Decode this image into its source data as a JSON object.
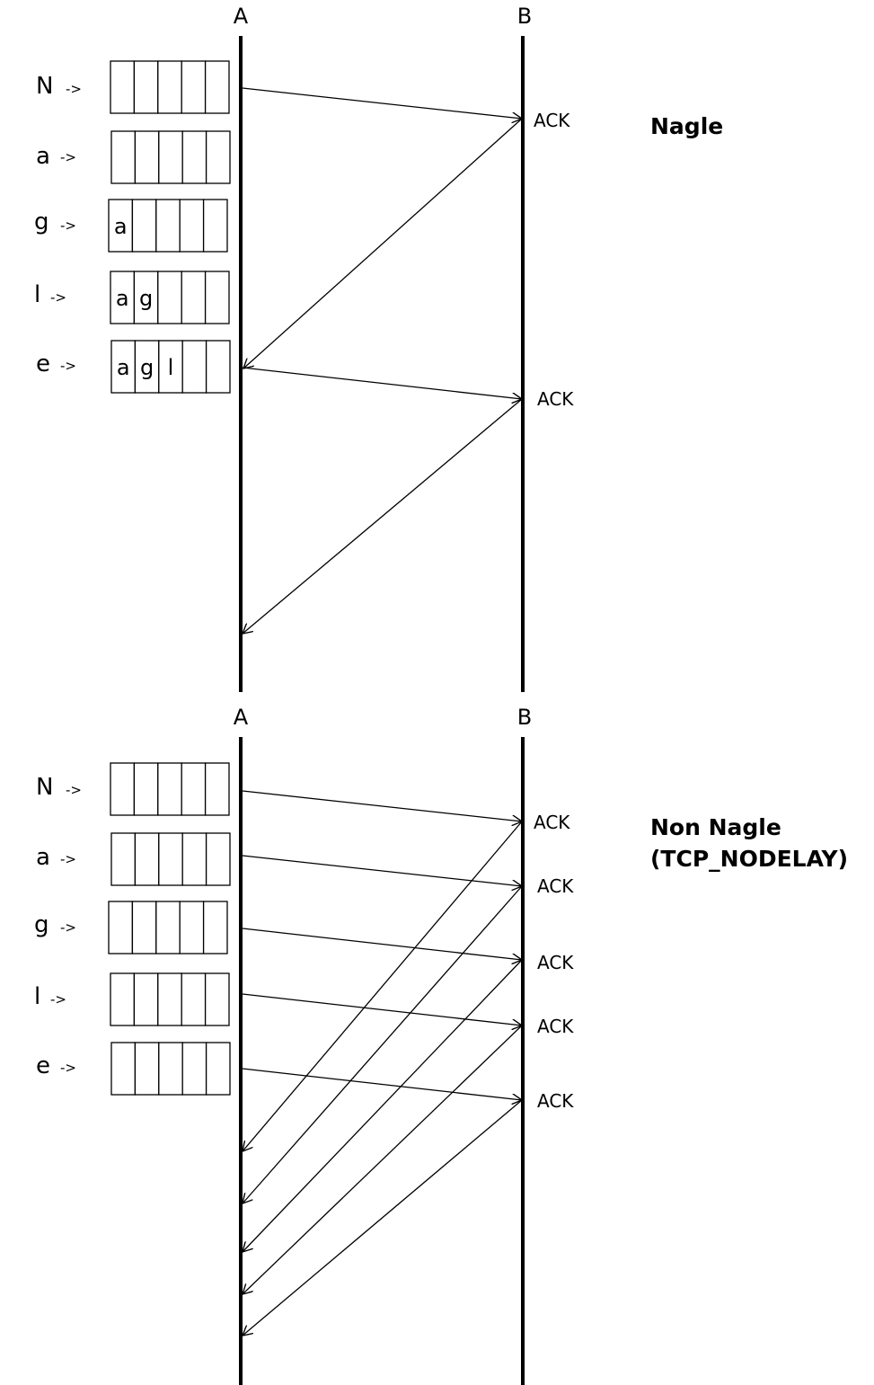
{
  "nagle": {
    "host_a": "A",
    "host_b": "B",
    "title": "Nagle",
    "rows": [
      {
        "char": "N",
        "arrow": "->",
        "buffer": [
          "",
          "",
          "",
          "",
          ""
        ]
      },
      {
        "char": "a",
        "arrow": "->",
        "buffer": [
          "",
          "",
          "",
          "",
          ""
        ]
      },
      {
        "char": "g",
        "arrow": "->",
        "buffer": [
          "a",
          "",
          "",
          "",
          ""
        ]
      },
      {
        "char": "l",
        "arrow": "->",
        "buffer": [
          "a",
          "g",
          "",
          "",
          ""
        ]
      },
      {
        "char": "e",
        "arrow": "->",
        "buffer": [
          "a",
          "g",
          "l",
          "",
          ""
        ]
      }
    ],
    "acks": [
      "ACK",
      "ACK"
    ]
  },
  "non_nagle": {
    "host_a": "A",
    "host_b": "B",
    "title_line1": "Non Nagle",
    "title_line2": "(TCP_NODELAY)",
    "rows": [
      {
        "char": "N",
        "arrow": "->",
        "buffer": [
          "",
          "",
          "",
          "",
          ""
        ]
      },
      {
        "char": "a",
        "arrow": "->",
        "buffer": [
          "",
          "",
          "",
          "",
          ""
        ]
      },
      {
        "char": "g",
        "arrow": "->",
        "buffer": [
          "",
          "",
          "",
          "",
          ""
        ]
      },
      {
        "char": "l",
        "arrow": "->",
        "buffer": [
          "",
          "",
          "",
          "",
          ""
        ]
      },
      {
        "char": "e",
        "arrow": "->",
        "buffer": [
          "",
          "",
          "",
          "",
          ""
        ]
      }
    ],
    "acks": [
      "ACK",
      "ACK",
      "ACK",
      "ACK",
      "ACK"
    ]
  }
}
